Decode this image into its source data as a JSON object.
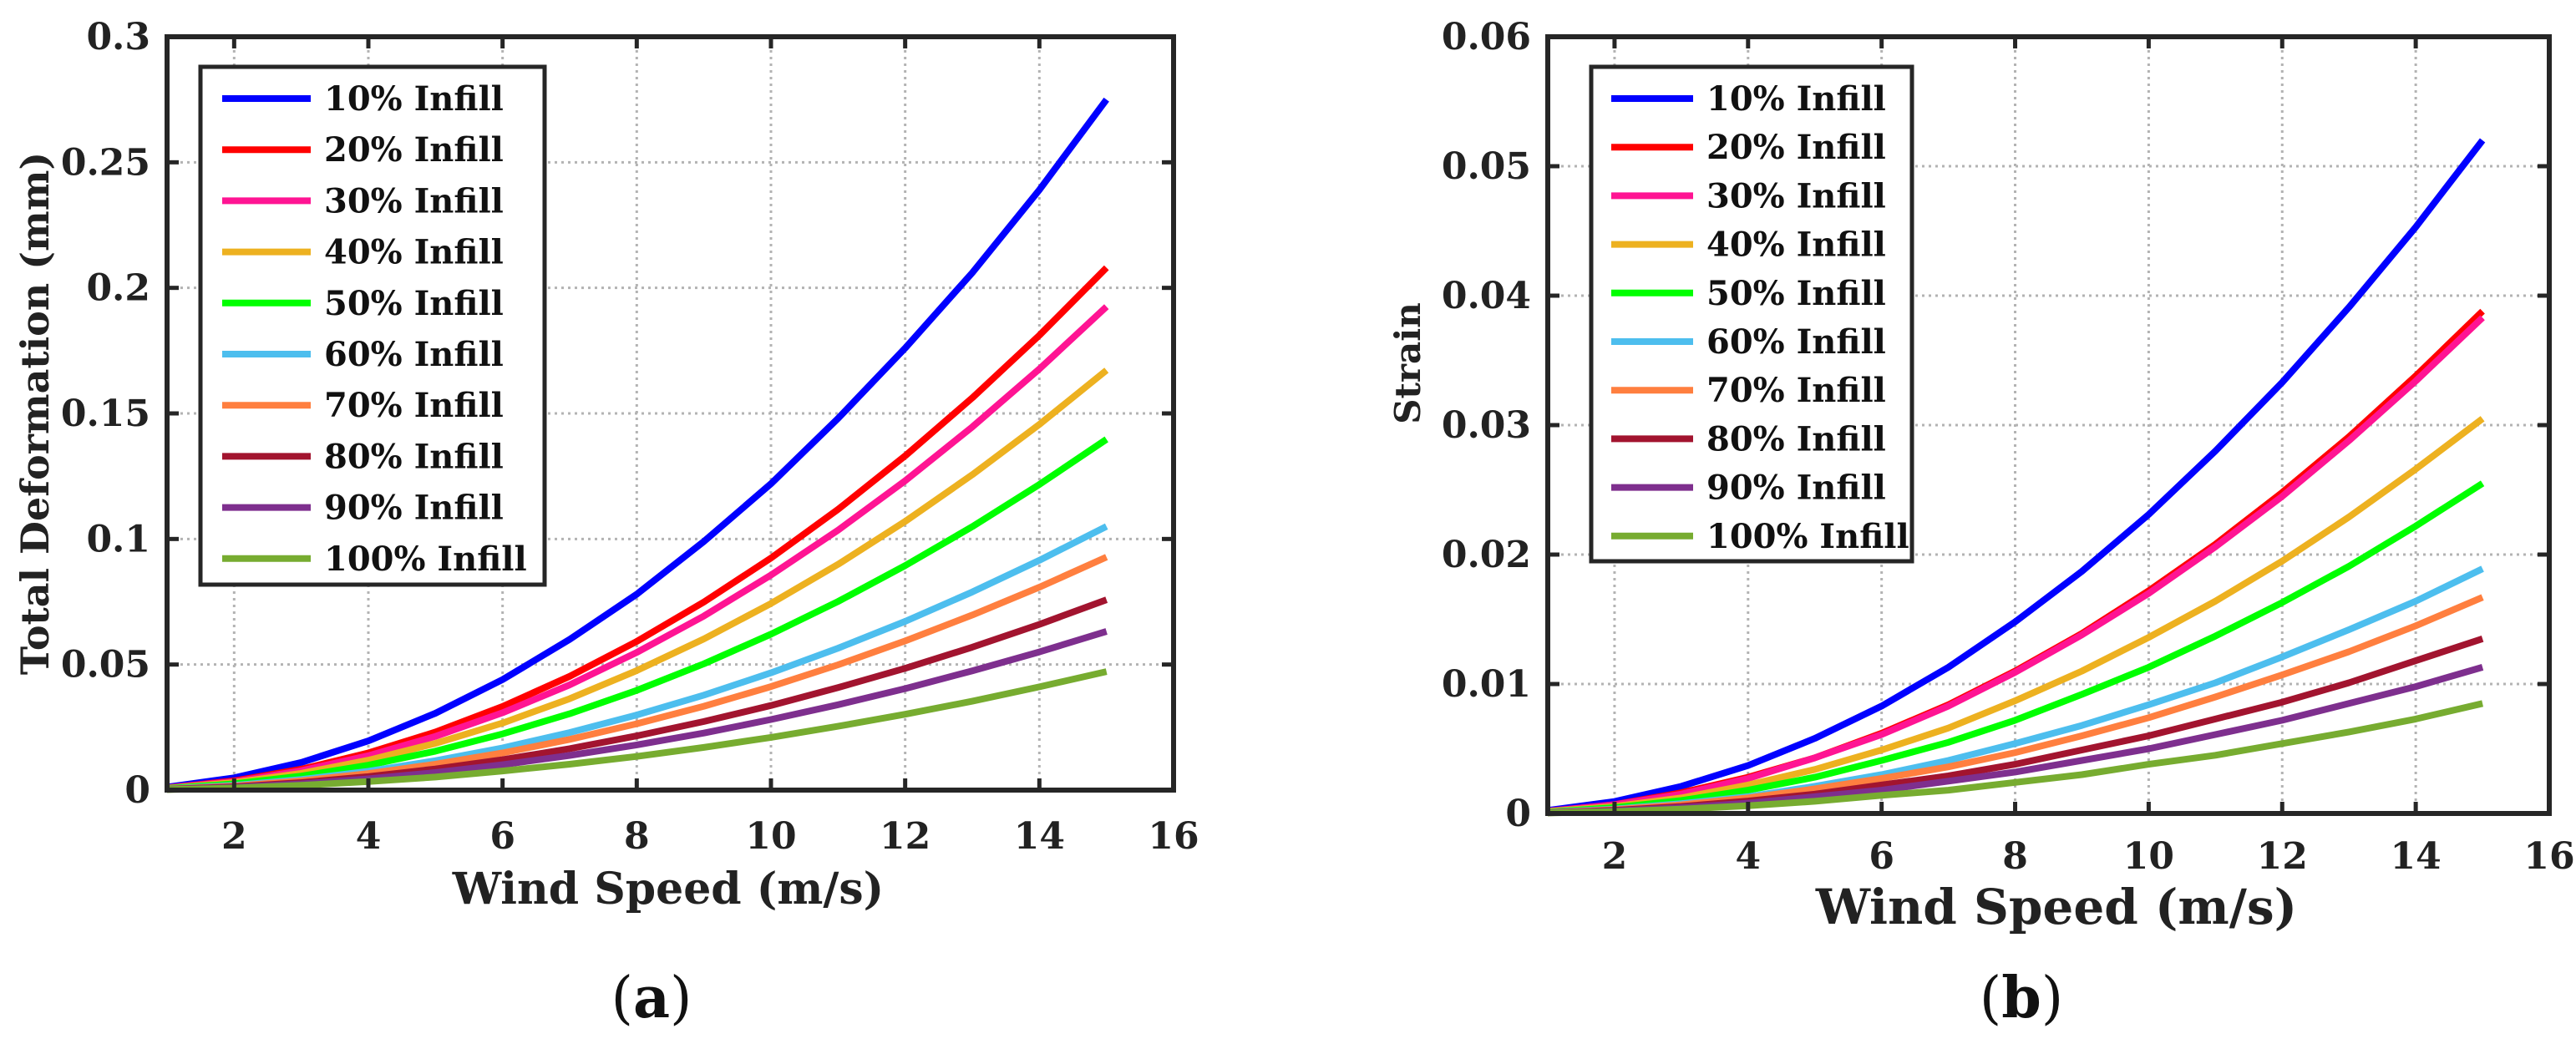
{
  "chart_data": [
    {
      "type": "line",
      "panel_label": {
        "open": "(",
        "letter": "a",
        "close": ")"
      },
      "title": "",
      "xlabel": "Wind Speed (m/s)",
      "ylabel": "Total Deformation (mm)",
      "xlim": [
        1,
        16
      ],
      "ylim": [
        0,
        0.3
      ],
      "xticks": [
        2,
        4,
        6,
        8,
        10,
        12,
        14,
        16
      ],
      "xtick_labels": [
        "2",
        "4",
        "6",
        "8",
        "10",
        "12",
        "14",
        "16"
      ],
      "yticks": [
        0,
        0.05,
        0.1,
        0.15,
        0.2,
        0.25,
        0.3
      ],
      "ytick_labels": [
        "0",
        "0.05",
        "0.1",
        "0.15",
        "0.2",
        "0.25",
        "0.3"
      ],
      "grid": true,
      "legend_position": "top-left",
      "x": [
        1,
        2,
        3,
        4,
        5,
        6,
        7,
        8,
        9,
        10,
        11,
        12,
        13,
        14,
        15
      ],
      "series": [
        {
          "name": "10% Infill",
          "color": "#0000ff",
          "values": [
            0.0012,
            0.0049,
            0.011,
            0.0196,
            0.0306,
            0.044,
            0.06,
            0.078,
            0.099,
            0.122,
            0.148,
            0.176,
            0.206,
            0.239,
            0.275
          ]
        },
        {
          "name": "20% Infill",
          "color": "#ff0000",
          "values": [
            0.0009,
            0.0037,
            0.0083,
            0.0148,
            0.0231,
            0.0333,
            0.0453,
            0.0592,
            0.0749,
            0.0924,
            0.1118,
            0.1331,
            0.1562,
            0.1811,
            0.208
          ]
        },
        {
          "name": "30% Infill",
          "color": "#ff1493",
          "values": [
            0.00086,
            0.0034,
            0.0077,
            0.0137,
            0.0214,
            0.0308,
            0.0419,
            0.0548,
            0.0693,
            0.0856,
            0.1035,
            0.1232,
            0.1446,
            0.1677,
            0.1925
          ]
        },
        {
          "name": "40% Infill",
          "color": "#edb120",
          "values": [
            0.00074,
            0.003,
            0.0067,
            0.0119,
            0.0186,
            0.0267,
            0.0364,
            0.0476,
            0.0602,
            0.0743,
            0.0899,
            0.107,
            0.1256,
            0.1456,
            0.1672
          ]
        },
        {
          "name": "50% Infill",
          "color": "#00ff00",
          "values": [
            0.00062,
            0.0025,
            0.0056,
            0.0099,
            0.0155,
            0.0224,
            0.0304,
            0.0397,
            0.0503,
            0.0621,
            0.0751,
            0.0894,
            0.1049,
            0.1217,
            0.1397
          ]
        },
        {
          "name": "60% Infill",
          "color": "#4dbeee",
          "values": [
            0.00047,
            0.0019,
            0.0042,
            0.0075,
            0.0117,
            0.0168,
            0.0229,
            0.0299,
            0.0378,
            0.0467,
            0.0565,
            0.0672,
            0.0789,
            0.0915,
            0.105
          ]
        },
        {
          "name": "70% Infill",
          "color": "#ff7f3f",
          "values": [
            0.00041,
            0.0016,
            0.0037,
            0.0066,
            0.0103,
            0.0148,
            0.0202,
            0.0264,
            0.0334,
            0.0412,
            0.0499,
            0.0594,
            0.0697,
            0.0808,
            0.0928
          ]
        },
        {
          "name": "80% Infill",
          "color": "#a2142f",
          "values": [
            0.00034,
            0.0013,
            0.003,
            0.0054,
            0.0084,
            0.0121,
            0.0165,
            0.0216,
            0.0273,
            0.0337,
            0.0408,
            0.0485,
            0.0569,
            0.066,
            0.0758
          ]
        },
        {
          "name": "90% Infill",
          "color": "#7e2f8e",
          "values": [
            0.00028,
            0.0011,
            0.0025,
            0.0045,
            0.007,
            0.0101,
            0.0138,
            0.018,
            0.0227,
            0.0281,
            0.034,
            0.0404,
            0.0475,
            0.055,
            0.0632
          ]
        },
        {
          "name": "100% Infill",
          "color": "#77ac30",
          "values": [
            0.00021,
            0.00084,
            0.0019,
            0.0034,
            0.0052,
            0.0076,
            0.0103,
            0.0134,
            0.017,
            0.021,
            0.0254,
            0.0302,
            0.0354,
            0.0411,
            0.0472
          ]
        }
      ]
    },
    {
      "type": "line",
      "panel_label": {
        "open": "(",
        "letter": "b",
        "close": ")"
      },
      "title": "",
      "xlabel": "Wind Speed (m/s)",
      "ylabel": "Strain",
      "xlim": [
        1,
        16
      ],
      "ylim": [
        0,
        0.06
      ],
      "xticks": [
        2,
        4,
        6,
        8,
        10,
        12,
        14,
        16
      ],
      "xtick_labels": [
        "2",
        "4",
        "6",
        "8",
        "10",
        "12",
        "14",
        "16"
      ],
      "yticks": [
        0,
        0.01,
        0.02,
        0.03,
        0.04,
        0.05,
        0.06
      ],
      "ytick_labels": [
        "0",
        "0.01",
        "0.02",
        "0.03",
        "0.04",
        "0.05",
        "0.06"
      ],
      "grid": true,
      "legend_position": "top-left",
      "x": [
        1,
        2,
        3,
        4,
        5,
        6,
        7,
        8,
        9,
        10,
        11,
        12,
        13,
        14,
        15
      ],
      "series": [
        {
          "name": "10% Infill",
          "color": "#0000ff",
          "values": [
            0.00023,
            0.00092,
            0.0021,
            0.0037,
            0.0058,
            0.0083,
            0.0113,
            0.0148,
            0.0187,
            0.0231,
            0.028,
            0.0333,
            0.0391,
            0.0453,
            0.052
          ]
        },
        {
          "name": "20% Infill",
          "color": "#ff0000",
          "values": [
            0.00017,
            0.00069,
            0.0016,
            0.0028,
            0.0043,
            0.0062,
            0.0084,
            0.011,
            0.0139,
            0.0172,
            0.0208,
            0.0248,
            0.0291,
            0.0338,
            0.0388
          ]
        },
        {
          "name": "30% Infill",
          "color": "#ff1493",
          "values": [
            0.00017,
            0.00068,
            0.0015,
            0.0027,
            0.0043,
            0.0061,
            0.0083,
            0.0109,
            0.0138,
            0.017,
            0.0206,
            0.0245,
            0.0288,
            0.0334,
            0.0383
          ]
        },
        {
          "name": "40% Infill",
          "color": "#edb120",
          "values": [
            0.00014,
            0.00054,
            0.0012,
            0.0022,
            0.0034,
            0.0049,
            0.0066,
            0.0087,
            0.011,
            0.0136,
            0.0164,
            0.0195,
            0.0229,
            0.0266,
            0.0305
          ]
        },
        {
          "name": "50% Infill",
          "color": "#00ff00",
          "values": [
            0.00011,
            0.00045,
            0.001,
            0.0018,
            0.0028,
            0.0041,
            0.0055,
            0.0072,
            0.0092,
            0.0113,
            0.0137,
            0.0163,
            0.0191,
            0.0222,
            0.0255
          ]
        },
        {
          "name": "60% Infill",
          "color": "#4dbeee",
          "values": [
            8.4e-05,
            0.00034,
            0.00076,
            0.0013,
            0.0021,
            0.003,
            0.0041,
            0.0054,
            0.0068,
            0.0084,
            0.0101,
            0.0121,
            0.0142,
            0.0164,
            0.0189
          ]
        },
        {
          "name": "70% Infill",
          "color": "#ff7f3f",
          "values": [
            7.4e-05,
            0.0003,
            0.00067,
            0.0012,
            0.0019,
            0.0027,
            0.0036,
            0.0047,
            0.006,
            0.0074,
            0.009,
            0.0107,
            0.0125,
            0.0145,
            0.0167
          ]
        },
        {
          "name": "80% Infill",
          "color": "#a2142f",
          "values": [
            6e-05,
            0.00024,
            0.00054,
            0.00096,
            0.0015,
            0.0022,
            0.0029,
            0.0038,
            0.0049,
            0.006,
            0.0073,
            0.0086,
            0.0101,
            0.0118,
            0.0135
          ]
        },
        {
          "name": "90% Infill",
          "color": "#7e2f8e",
          "values": [
            5e-05,
            0.0002,
            0.00045,
            0.0008,
            0.0013,
            0.0018,
            0.0025,
            0.0032,
            0.0041,
            0.005,
            0.0061,
            0.0072,
            0.0085,
            0.0098,
            0.0113
          ]
        },
        {
          "name": "100% Infill",
          "color": "#77ac30",
          "values": [
            3.8e-05,
            0.00015,
            0.00034,
            0.0006,
            0.00094,
            0.0014,
            0.0018,
            0.0024,
            0.003,
            0.0038,
            0.0045,
            0.0054,
            0.0063,
            0.0073,
            0.0085
          ]
        }
      ]
    }
  ]
}
